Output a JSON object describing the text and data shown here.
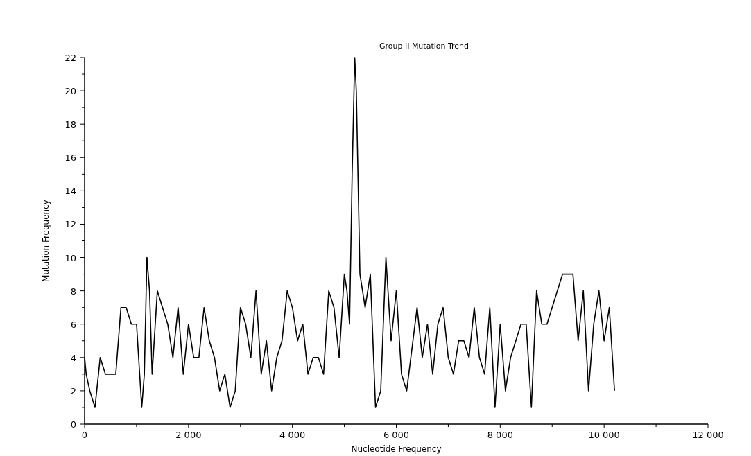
{
  "chart_data": {
    "type": "line",
    "title": "Group II Mutation Trend",
    "xlabel": "Nucleotide Frequency",
    "ylabel": "Mutation Frequency",
    "x": [
      0,
      30,
      100,
      200,
      300,
      400,
      600,
      700,
      800,
      900,
      1000,
      1100,
      1150,
      1200,
      1250,
      1300,
      1400,
      1500,
      1600,
      1700,
      1800,
      1900,
      2000,
      2100,
      2200,
      2300,
      2400,
      2500,
      2600,
      2700,
      2800,
      2900,
      3000,
      3100,
      3200,
      3300,
      3400,
      3500,
      3600,
      3700,
      3800,
      3900,
      4000,
      4100,
      4200,
      4300,
      4400,
      4500,
      4600,
      4700,
      4800,
      4900,
      5000,
      5050,
      5100,
      5150,
      5200,
      5230,
      5300,
      5400,
      5500,
      5600,
      5700,
      5800,
      5900,
      6000,
      6100,
      6200,
      6400,
      6500,
      6600,
      6700,
      6800,
      6900,
      7000,
      7100,
      7200,
      7300,
      7400,
      7500,
      7600,
      7700,
      7800,
      7900,
      8000,
      8100,
      8200,
      8400,
      8500,
      8600,
      8700,
      8800,
      8900,
      9200,
      9400,
      9500,
      9600,
      9700,
      9800,
      9900,
      10000,
      10100,
      10200
    ],
    "series": [
      {
        "color": "#000000",
        "values": [
          4,
          3,
          2,
          1,
          4,
          3,
          3,
          7,
          7,
          6,
          6,
          1,
          3,
          10,
          8,
          3,
          8,
          7,
          6,
          4,
          7,
          3,
          6,
          4,
          4,
          7,
          5,
          4,
          2,
          3,
          1,
          2,
          7,
          6,
          4,
          8,
          3,
          5,
          2,
          4,
          5,
          8,
          7,
          5,
          6,
          3,
          4,
          4,
          3,
          8,
          7,
          4,
          9,
          8,
          6,
          15,
          22,
          20,
          9,
          7,
          9,
          1,
          2,
          10,
          5,
          8,
          3,
          2,
          7,
          4,
          6,
          3,
          6,
          7,
          4,
          3,
          5,
          5,
          4,
          7,
          4,
          3,
          7,
          1,
          6,
          2,
          4,
          6,
          6,
          1,
          8,
          6,
          6,
          9,
          9,
          5,
          8,
          2,
          6,
          8,
          5,
          7,
          2
        ]
      }
    ],
    "xlim": [
      0,
      12000
    ],
    "ylim": [
      0,
      22
    ],
    "xticks": [
      {
        "value": 0,
        "label": "0"
      },
      {
        "value": 1000,
        "label": null
      },
      {
        "value": 2000,
        "label": "2 000"
      },
      {
        "value": 3000,
        "label": null
      },
      {
        "value": 4000,
        "label": "4 000"
      },
      {
        "value": 5000,
        "label": null
      },
      {
        "value": 6000,
        "label": "6 000"
      },
      {
        "value": 7000,
        "label": null
      },
      {
        "value": 8000,
        "label": "8 000"
      },
      {
        "value": 9000,
        "label": null
      },
      {
        "value": 10000,
        "label": "10 000"
      },
      {
        "value": 11000,
        "label": null
      },
      {
        "value": 12000,
        "label": "12 000"
      }
    ],
    "yticks": [
      0,
      {
        "value": 1,
        "label": null
      },
      2,
      {
        "value": 3,
        "label": null
      },
      4,
      {
        "value": 5,
        "label": null
      },
      6,
      {
        "value": 7,
        "label": null
      },
      8,
      {
        "value": 9,
        "label": null
      },
      10,
      {
        "value": 11,
        "label": null
      },
      12,
      {
        "value": 13,
        "label": null
      },
      14,
      {
        "value": 15,
        "label": null
      },
      16,
      {
        "value": 17,
        "label": null
      },
      18,
      {
        "value": 19,
        "label": null
      },
      20,
      {
        "value": 21,
        "label": null
      },
      22
    ],
    "grid": false,
    "marker": "none",
    "line_style": "solid"
  }
}
